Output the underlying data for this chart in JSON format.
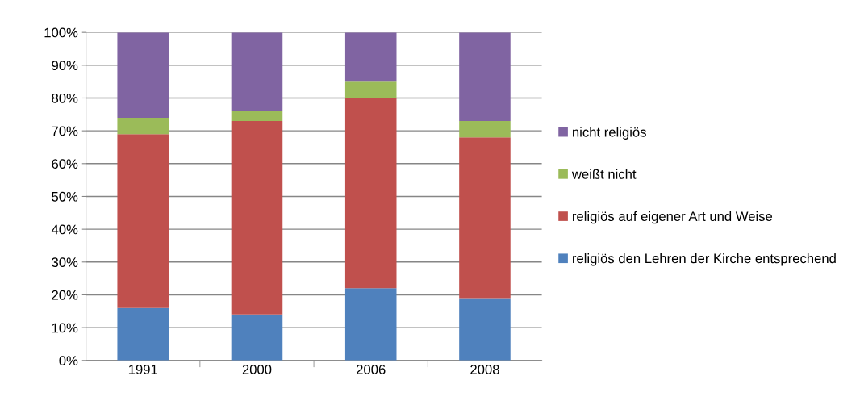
{
  "chart_data": {
    "type": "bar",
    "stacked": true,
    "categories": [
      "1991",
      "2000",
      "2006",
      "2008"
    ],
    "series": [
      {
        "name": "religiös den Lehren der Kirche entsprechend",
        "color": "#4f81bd",
        "values": [
          16,
          14,
          22,
          19
        ]
      },
      {
        "name": "religiös auf eigener Art und Weise",
        "color": "#c0504d",
        "values": [
          53,
          59,
          58,
          49
        ]
      },
      {
        "name": "weißt nicht",
        "color": "#9bbb59",
        "values": [
          5,
          3,
          5,
          5
        ]
      },
      {
        "name": "nicht religiös",
        "color": "#8064a2",
        "values": [
          26,
          24,
          15,
          27
        ]
      }
    ],
    "ylim": [
      0,
      100
    ],
    "yticks": [
      {
        "value": 0,
        "label": "0%"
      },
      {
        "value": 10,
        "label": "10%"
      },
      {
        "value": 20,
        "label": "20%"
      },
      {
        "value": 30,
        "label": "30%"
      },
      {
        "value": 40,
        "label": "40%"
      },
      {
        "value": 50,
        "label": "50%"
      },
      {
        "value": 60,
        "label": "60%"
      },
      {
        "value": 70,
        "label": "70%"
      },
      {
        "value": 80,
        "label": "80%"
      },
      {
        "value": 90,
        "label": "90%"
      },
      {
        "value": 100,
        "label": "100%"
      }
    ],
    "grid": "y",
    "legend": "right"
  }
}
